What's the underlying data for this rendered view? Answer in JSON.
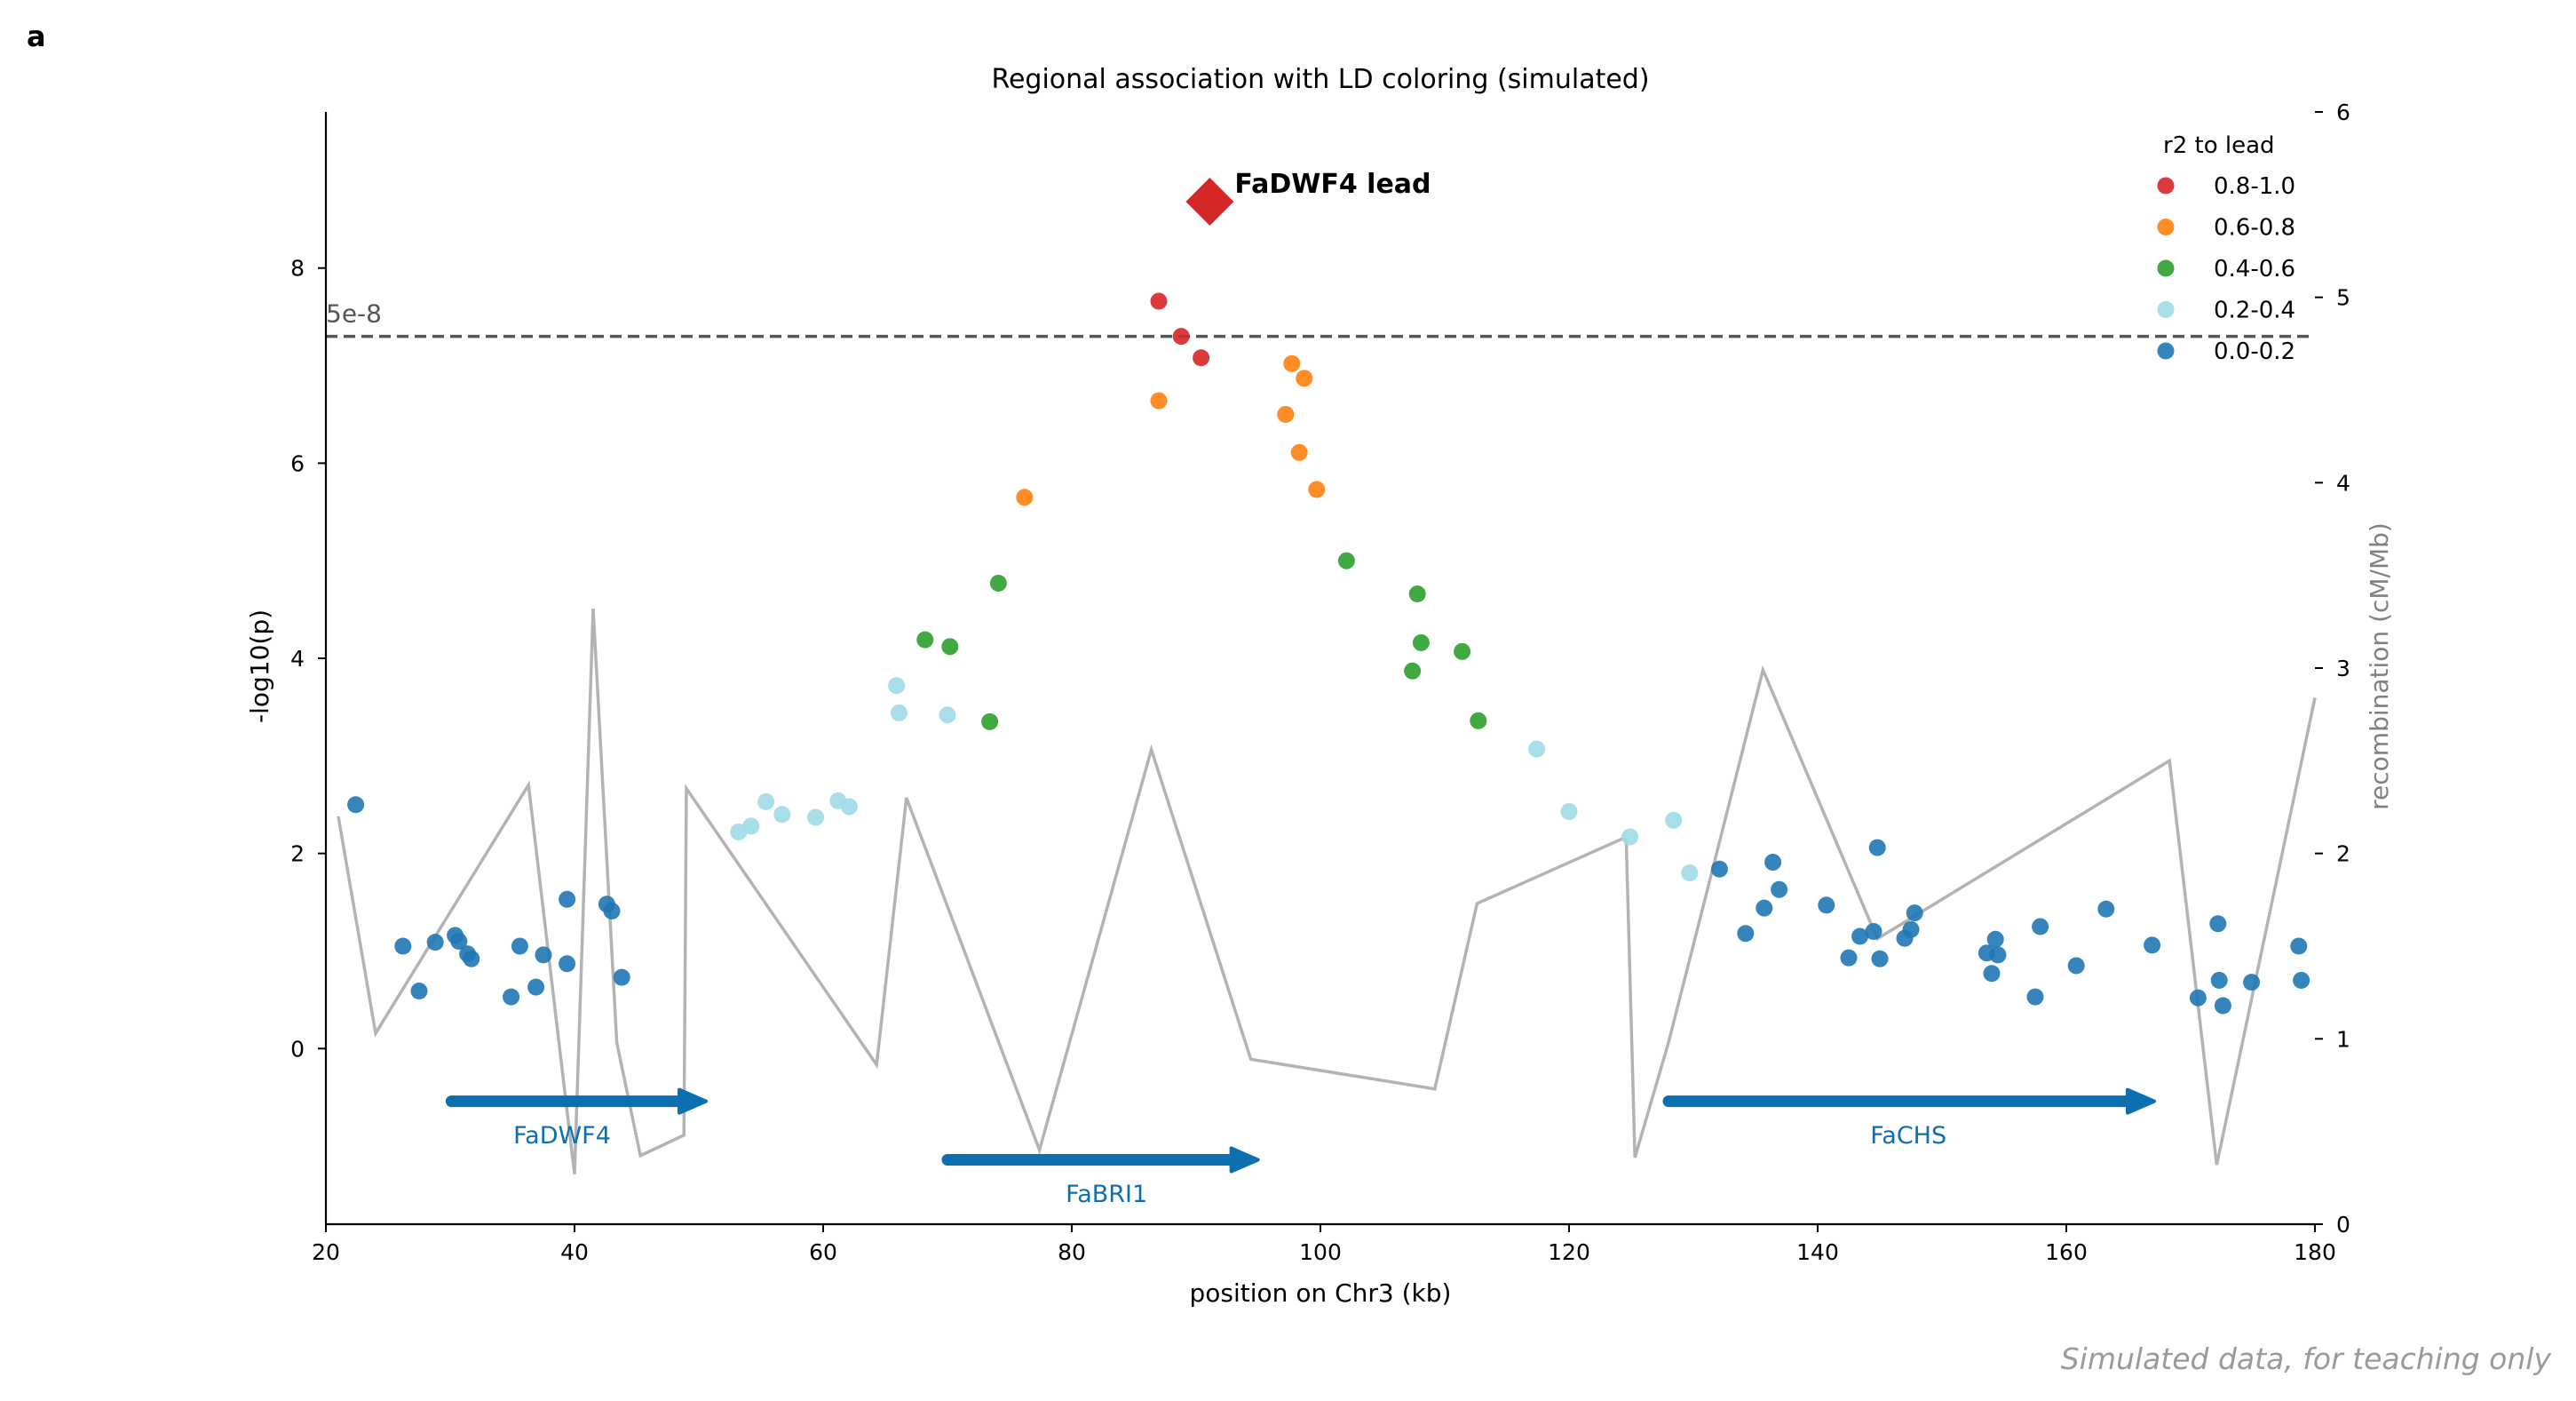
{
  "panel_label": "a",
  "footer_note": "Simulated data, for teaching only",
  "chart_data": {
    "type": "scatter",
    "title": "Regional association with LD coloring (simulated)",
    "xlabel": "position on Chr3 (kb)",
    "ylabel": "-log10(p)",
    "y2label": "recombination (cM/Mb)",
    "xlim": [
      20,
      180
    ],
    "ylim": [
      -1.8,
      9.6
    ],
    "y2lim": [
      0,
      6
    ],
    "xticks": [
      20,
      40,
      60,
      80,
      100,
      120,
      140,
      160,
      180
    ],
    "yticks": [
      0,
      2,
      4,
      6,
      8
    ],
    "y2ticks": [
      0,
      1,
      2,
      3,
      4,
      5,
      6
    ],
    "grid": false,
    "threshold": {
      "y": 7.3,
      "label": "5e-8",
      "color": "#555555"
    },
    "legend": {
      "title": "r2 to lead",
      "placement": "top-right",
      "entries": [
        {
          "label": "0.8-1.0",
          "color": "#d62728"
        },
        {
          "label": "0.6-0.8",
          "color": "#ff7f0e"
        },
        {
          "label": "0.4-0.6",
          "color": "#2ca02c"
        },
        {
          "label": "0.2-0.4",
          "color": "#9edae5"
        },
        {
          "label": "0.0-0.2",
          "color": "#1f77b4"
        }
      ]
    },
    "lead": {
      "label": "FaDWF4 lead",
      "x": 91.1,
      "y": 8.68,
      "color": "#d62728"
    },
    "series": [
      {
        "r2_bin": "0.8-1.0",
        "color": "#d62728",
        "points": [
          [
            87.0,
            7.66
          ],
          [
            88.8,
            7.3
          ],
          [
            90.4,
            7.08
          ]
        ]
      },
      {
        "r2_bin": "0.6-0.8",
        "color": "#ff7f0e",
        "points": [
          [
            76.2,
            5.65
          ],
          [
            87.0,
            6.64
          ],
          [
            97.2,
            6.5
          ],
          [
            97.7,
            7.02
          ],
          [
            98.3,
            6.11
          ],
          [
            98.7,
            6.87
          ],
          [
            99.7,
            5.73
          ]
        ]
      },
      {
        "r2_bin": "0.4-0.6",
        "color": "#2ca02c",
        "points": [
          [
            68.2,
            4.19
          ],
          [
            70.2,
            4.12
          ],
          [
            73.4,
            3.35
          ],
          [
            74.1,
            4.77
          ],
          [
            102.1,
            5.0
          ],
          [
            107.4,
            3.87
          ],
          [
            107.8,
            4.66
          ],
          [
            108.1,
            4.16
          ],
          [
            111.4,
            4.07
          ],
          [
            112.7,
            3.36
          ]
        ]
      },
      {
        "r2_bin": "0.2-0.4",
        "color": "#9edae5",
        "points": [
          [
            53.2,
            2.22
          ],
          [
            54.2,
            2.28
          ],
          [
            55.4,
            2.53
          ],
          [
            56.7,
            2.4
          ],
          [
            59.4,
            2.37
          ],
          [
            61.2,
            2.54
          ],
          [
            62.1,
            2.48
          ],
          [
            65.9,
            3.72
          ],
          [
            66.1,
            3.44
          ],
          [
            70.0,
            3.42
          ],
          [
            117.4,
            3.07
          ],
          [
            120.0,
            2.43
          ],
          [
            124.9,
            2.17
          ],
          [
            128.4,
            2.34
          ],
          [
            129.7,
            1.8
          ]
        ]
      },
      {
        "r2_bin": "0.0-0.2",
        "color": "#1f77b4",
        "points": [
          [
            22.4,
            2.5
          ],
          [
            26.2,
            1.05
          ],
          [
            27.5,
            0.59
          ],
          [
            28.8,
            1.09
          ],
          [
            30.4,
            1.16
          ],
          [
            30.7,
            1.1
          ],
          [
            31.4,
            0.97
          ],
          [
            31.7,
            0.92
          ],
          [
            34.9,
            0.53
          ],
          [
            35.6,
            1.05
          ],
          [
            36.9,
            0.63
          ],
          [
            37.5,
            0.96
          ],
          [
            39.4,
            1.53
          ],
          [
            39.4,
            0.87
          ],
          [
            42.6,
            1.48
          ],
          [
            43.0,
            1.41
          ],
          [
            43.8,
            0.73
          ],
          [
            132.1,
            1.84
          ],
          [
            134.2,
            1.18
          ],
          [
            135.7,
            1.44
          ],
          [
            136.4,
            1.91
          ],
          [
            136.9,
            1.63
          ],
          [
            140.7,
            1.47
          ],
          [
            142.5,
            0.93
          ],
          [
            143.4,
            1.15
          ],
          [
            144.5,
            1.2
          ],
          [
            144.8,
            2.06
          ],
          [
            145.0,
            0.92
          ],
          [
            147.0,
            1.13
          ],
          [
            147.5,
            1.22
          ],
          [
            147.8,
            1.39
          ],
          [
            153.6,
            0.98
          ],
          [
            154.0,
            0.77
          ],
          [
            154.3,
            1.12
          ],
          [
            154.5,
            0.96
          ],
          [
            157.5,
            0.53
          ],
          [
            157.9,
            1.25
          ],
          [
            160.8,
            0.85
          ],
          [
            163.2,
            1.43
          ],
          [
            166.9,
            1.06
          ],
          [
            170.6,
            0.52
          ],
          [
            172.2,
            1.28
          ],
          [
            172.3,
            0.7
          ],
          [
            172.6,
            0.44
          ],
          [
            174.9,
            0.68
          ],
          [
            178.7,
            1.05
          ],
          [
            178.9,
            0.7
          ]
        ]
      }
    ],
    "recombination": [
      [
        21,
        2.2
      ],
      [
        24,
        1.03
      ],
      [
        36.3,
        2.37
      ],
      [
        40,
        0.27
      ],
      [
        41.5,
        3.32
      ],
      [
        43.4,
        0.98
      ],
      [
        45.3,
        0.37
      ],
      [
        48.8,
        0.48
      ],
      [
        49,
        2.35
      ],
      [
        64.3,
        0.86
      ],
      [
        66.7,
        2.3
      ],
      [
        77.4,
        0.4
      ],
      [
        86.4,
        2.56
      ],
      [
        94.4,
        0.89
      ],
      [
        109.2,
        0.73
      ],
      [
        112.6,
        1.73
      ],
      [
        124.3,
        2.08
      ],
      [
        124.6,
        2.07
      ],
      [
        125.3,
        0.36
      ],
      [
        128,
        0.98
      ],
      [
        131,
        1.77
      ],
      [
        135.6,
        2.99
      ],
      [
        144.8,
        1.54
      ],
      [
        168.3,
        2.5
      ],
      [
        172.1,
        0.32
      ],
      [
        180,
        2.84
      ]
    ],
    "genes": [
      {
        "name": "FaDWF4",
        "start": 30.1,
        "end": 50.0,
        "y": -0.54,
        "label_x": 39.0,
        "label_y": -0.88,
        "color": "#0c6fb0"
      },
      {
        "name": "FaBRI1",
        "start": 70.0,
        "end": 94.4,
        "y": -1.14,
        "label_x": 82.8,
        "label_y": -1.48,
        "color": "#0c6fb0"
      },
      {
        "name": "FaCHS",
        "start": 128.0,
        "end": 166.5,
        "y": -0.54,
        "label_x": 147.3,
        "label_y": -0.88,
        "color": "#0c6fb0"
      }
    ]
  }
}
